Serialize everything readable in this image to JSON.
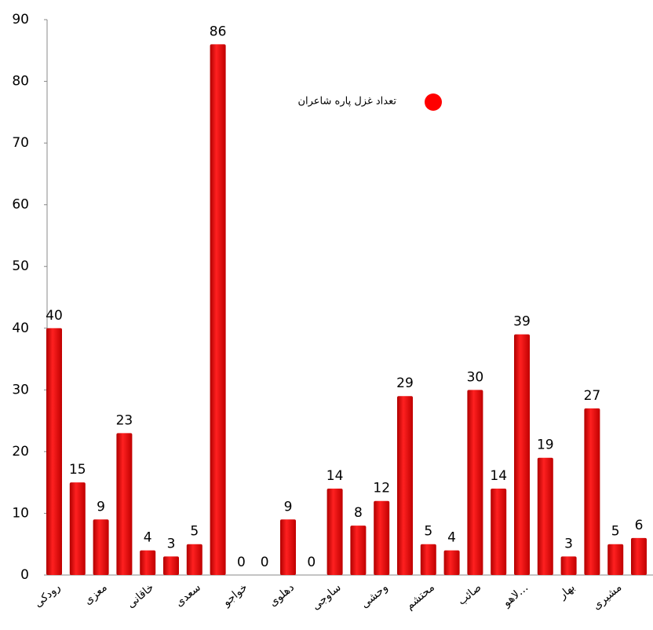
{
  "chart_data": {
    "type": "bar",
    "categories": [
      "رودکی",
      null,
      "معزی",
      null,
      "خاقانی",
      null,
      "سعدی",
      null,
      "خواجو",
      null,
      "دهلوی",
      null,
      "ساوجی",
      null,
      "وحشی",
      null,
      "محتشم",
      null,
      "صائب",
      null,
      "لاهو…",
      null,
      "بهار",
      null,
      "مشیری",
      null
    ],
    "series": [
      {
        "name": "تعداد غزل پاره شاعران",
        "color": "#ff0000",
        "values": [
          40,
          15,
          9,
          23,
          4,
          3,
          5,
          86,
          0,
          0,
          9,
          0,
          14,
          8,
          12,
          29,
          5,
          4,
          30,
          14,
          39,
          19,
          3,
          27,
          5,
          6
        ]
      }
    ],
    "ylim": [
      0,
      90
    ],
    "yticks": [
      0,
      10,
      20,
      30,
      40,
      50,
      60,
      70,
      80,
      90
    ]
  }
}
